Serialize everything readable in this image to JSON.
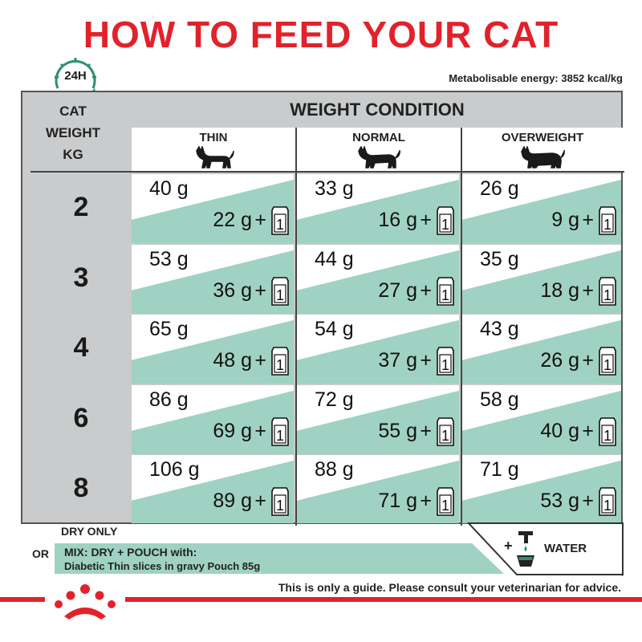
{
  "title": "HOW TO FEED YOUR CAT",
  "clock_label": "24H",
  "energy": "Metabolisable energy: 3852 kcal/kg",
  "header": {
    "cat_weight": [
      "CAT",
      "WEIGHT",
      "KG"
    ],
    "weight_condition": "WEIGHT CONDITION",
    "columns": [
      "THIN",
      "NORMAL",
      "OVERWEIGHT"
    ]
  },
  "pouch_label": "1",
  "plus": "+",
  "rows": [
    {
      "weight": "2",
      "cells": [
        {
          "dry": "40 g",
          "mix": "22 g"
        },
        {
          "dry": "33 g",
          "mix": "16 g"
        },
        {
          "dry": "26 g",
          "mix": "9 g"
        }
      ]
    },
    {
      "weight": "3",
      "cells": [
        {
          "dry": "53 g",
          "mix": "36 g"
        },
        {
          "dry": "44 g",
          "mix": "27 g"
        },
        {
          "dry": "35 g",
          "mix": "18 g"
        }
      ]
    },
    {
      "weight": "4",
      "cells": [
        {
          "dry": "65 g",
          "mix": "48 g"
        },
        {
          "dry": "54 g",
          "mix": "37 g"
        },
        {
          "dry": "43 g",
          "mix": "26 g"
        }
      ]
    },
    {
      "weight": "6",
      "cells": [
        {
          "dry": "86 g",
          "mix": "69 g"
        },
        {
          "dry": "72 g",
          "mix": "55 g"
        },
        {
          "dry": "58 g",
          "mix": "40 g"
        }
      ]
    },
    {
      "weight": "8",
      "cells": [
        {
          "dry": "106 g",
          "mix": "89 g"
        },
        {
          "dry": "88 g",
          "mix": "71 g"
        },
        {
          "dry": "71 g",
          "mix": "53 g"
        }
      ]
    }
  ],
  "legend": {
    "dry_only": "DRY ONLY",
    "or": "OR",
    "mix_line1": "MIX: DRY + POUCH with:",
    "mix_line2": "Diabetic Thin slices in gravy Pouch 85g",
    "water_plus": "+",
    "water": "WATER"
  },
  "footer": "This is only a guide. Please consult your veterinarian for advice.",
  "colors": {
    "brand_red": "#e2222b",
    "teal": "#2f8f74",
    "mint": "#9fd2c2",
    "grey": "#c9cbcc"
  },
  "icons": {
    "clock": "clock-24h-icon",
    "cat": "cat-silhouette-icon",
    "pouch": "pouch-icon",
    "water": "water-tap-icon",
    "logo": "crown-logo"
  }
}
